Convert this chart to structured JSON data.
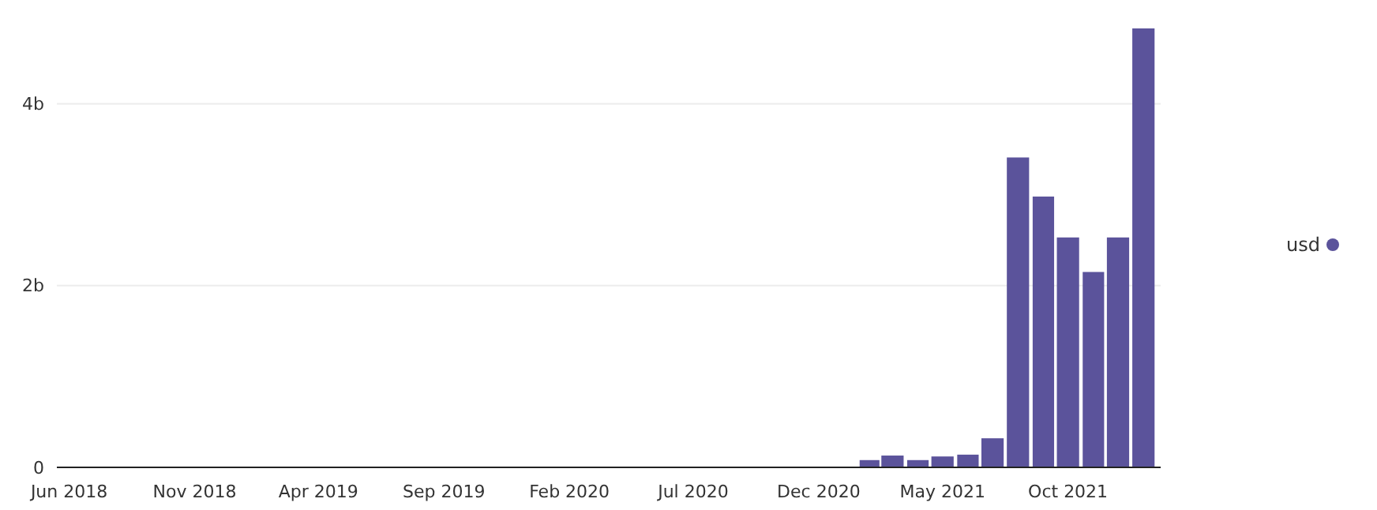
{
  "chart_data": {
    "type": "bar",
    "x": [
      "2021-02-01",
      "2021-03-01",
      "2021-04-01",
      "2021-05-01",
      "2021-06-01",
      "2021-07-01",
      "2021-08-01",
      "2021-09-01",
      "2021-10-01",
      "2021-11-01",
      "2021-12-01",
      "2022-01-01"
    ],
    "series": [
      {
        "name": "usd",
        "color": "#5b539b",
        "values": [
          80000000,
          130000000,
          80000000,
          120000000,
          140000000,
          320000000,
          3410000000,
          2980000000,
          2530000000,
          2150000000,
          2530000000,
          4830000000
        ]
      }
    ],
    "xlim": [
      "2018-05-17",
      "2022-01-22"
    ],
    "xticks": [
      {
        "value": "2018-06-01",
        "label": "Jun 2018"
      },
      {
        "value": "2018-11-01",
        "label": "Nov 2018"
      },
      {
        "value": "2019-04-01",
        "label": "Apr 2019"
      },
      {
        "value": "2019-09-01",
        "label": "Sep 2019"
      },
      {
        "value": "2020-02-01",
        "label": "Feb 2020"
      },
      {
        "value": "2020-07-01",
        "label": "Jul 2020"
      },
      {
        "value": "2020-12-01",
        "label": "Dec 2020"
      },
      {
        "value": "2021-05-01",
        "label": "May 2021"
      },
      {
        "value": "2021-10-01",
        "label": "Oct 2021"
      }
    ],
    "ylim": [
      0,
      4830000000
    ],
    "yticks": [
      {
        "value": 0,
        "label": "0"
      },
      {
        "value": 2000000000,
        "label": "2b"
      },
      {
        "value": 4000000000,
        "label": "4b"
      }
    ],
    "grid": "y",
    "legend": "right"
  }
}
